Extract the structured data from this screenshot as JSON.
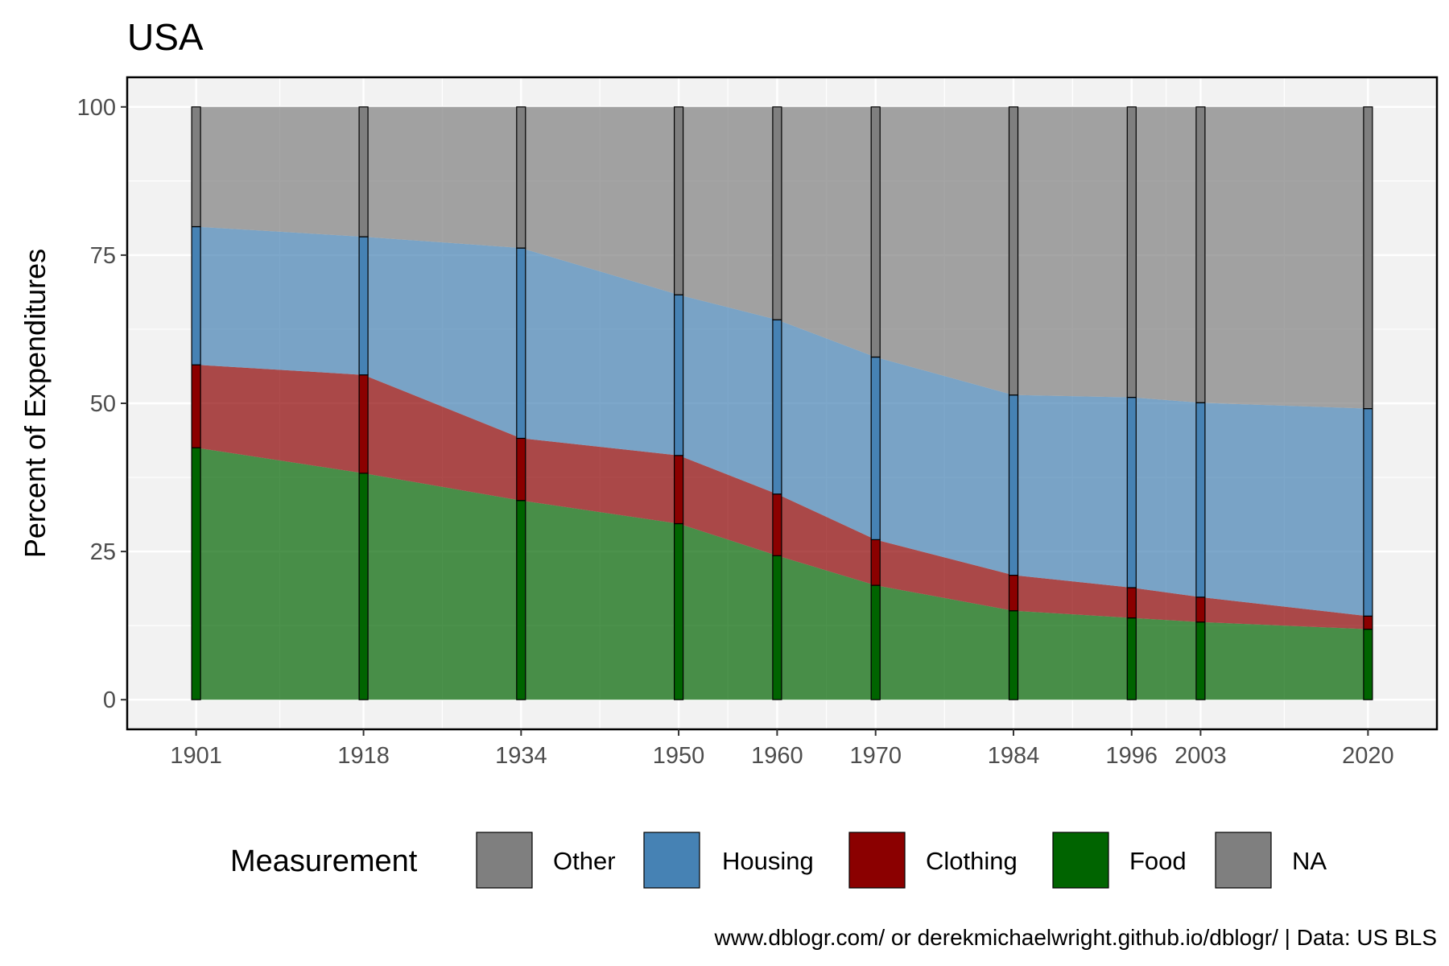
{
  "chart_data": {
    "type": "area",
    "title": "USA",
    "ylabel": "Percent of Expenditures",
    "xlabel": "",
    "caption": "www.dblogr.com/ or derekmichaelwright.github.io/dblogr/ | Data: US BLS",
    "ylim": [
      0,
      100
    ],
    "yticks": [
      0,
      25,
      50,
      75,
      100
    ],
    "ytick_labels": [
      "0",
      "25",
      "50",
      "75",
      "100"
    ],
    "x": [
      1901,
      1918,
      1934,
      1950,
      1960,
      1970,
      1984,
      1996,
      2003,
      2020
    ],
    "xtick_labels": [
      "1901",
      "1918",
      "1934",
      "1950",
      "1960",
      "1970",
      "1984",
      "1996",
      "2003",
      "2020"
    ],
    "stacked": true,
    "grid": true,
    "series": [
      {
        "name": "Food",
        "color": "#006400",
        "values": [
          42.5,
          38.2,
          33.6,
          29.7,
          24.3,
          19.3,
          15.0,
          13.8,
          13.1,
          11.9
        ]
      },
      {
        "name": "Clothing",
        "color": "#8B0000",
        "values": [
          14.0,
          16.6,
          10.5,
          11.5,
          10.4,
          7.7,
          6.0,
          5.1,
          4.2,
          2.2
        ]
      },
      {
        "name": "Housing",
        "color": "#4682B4",
        "values": [
          23.3,
          23.3,
          32.1,
          27.1,
          29.4,
          30.8,
          30.4,
          32.1,
          32.8,
          35.0
        ]
      },
      {
        "name": "Other",
        "color": "#7F7F7F",
        "values": [
          20.2,
          21.9,
          23.8,
          31.7,
          35.9,
          42.2,
          48.6,
          49.0,
          49.9,
          50.9
        ]
      }
    ],
    "legend": {
      "title": "Measurement",
      "position": "bottom",
      "items": [
        {
          "label": "Other",
          "color": "#7F7F7F"
        },
        {
          "label": "Housing",
          "color": "#4682B4"
        },
        {
          "label": "Clothing",
          "color": "#8B0000"
        },
        {
          "label": "Food",
          "color": "#006400"
        },
        {
          "label": "NA",
          "color": "#7F7F7F"
        }
      ]
    }
  }
}
